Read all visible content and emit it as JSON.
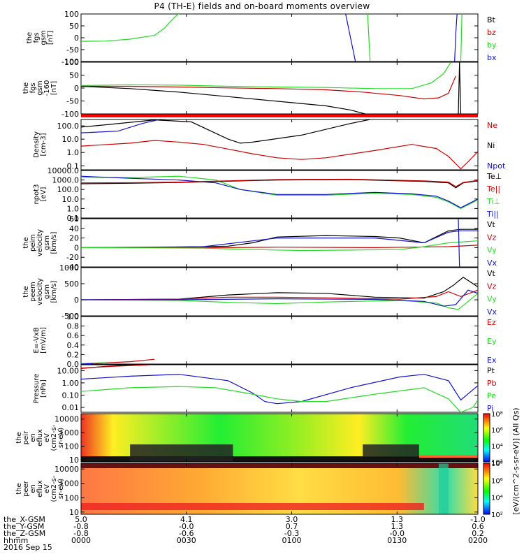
{
  "title": "P4 (TH-E) fields and on-board moments overview",
  "colors": {
    "black": "#000000",
    "red": "#cc0000",
    "green": "#22dd22",
    "blue": "#1111cc",
    "ion_bar": "#ff0000"
  },
  "chart_data": [
    {
      "type": "line",
      "ylabel_lines": [
        "the",
        "fgs",
        "gsm",
        "[nT]"
      ],
      "ylim": [
        -100,
        100
      ],
      "yticks": [
        "100",
        "50",
        "0",
        "-50",
        "-100"
      ],
      "legend": [
        "Bt",
        "bz",
        "by",
        "bx"
      ],
      "series": [
        {
          "name": "by",
          "color": "green",
          "x": [
            0,
            10,
            20,
            30,
            34,
            38,
            40,
            42
          ],
          "y": [
            -15,
            -14,
            -6,
            10,
            40,
            85,
            102,
            130
          ]
        },
        {
          "name": "bx",
          "color": "blue",
          "x": [
            108,
            110,
            112
          ],
          "y": [
            100,
            0,
            -100
          ]
        },
        {
          "name": "bx",
          "color": "blue",
          "x": [
            152.5,
            153,
            153.5
          ],
          "y": [
            -100,
            20,
            100
          ]
        },
        {
          "name": "by",
          "color": "green",
          "x": [
            117,
            118
          ],
          "y": [
            100,
            -100
          ]
        },
        {
          "name": "by",
          "color": "green",
          "x": [
            155,
            155.5
          ],
          "y": [
            -100,
            100
          ]
        }
      ]
    },
    {
      "type": "line",
      "ylabel_lines": [
        "the",
        "fgs",
        "gsm",
        "-160",
        "[nT]"
      ],
      "ylim": [
        -125,
        100
      ],
      "yticks": [
        "100",
        "50",
        "0",
        "-50",
        "-100"
      ],
      "legend": [],
      "series": [
        {
          "name": "green",
          "color": "green",
          "x": [
            0,
            20,
            40,
            60,
            80,
            100,
            120,
            135,
            143,
            148,
            151
          ],
          "y": [
            -2,
            2,
            0,
            -5,
            -8,
            -10,
            -15,
            -15,
            10,
            50,
            100
          ]
        },
        {
          "name": "red",
          "color": "red",
          "x": [
            0,
            20,
            40,
            60,
            80,
            100,
            115,
            130,
            140,
            146,
            150,
            153
          ],
          "y": [
            -5,
            -5,
            -8,
            -12,
            -15,
            -20,
            -30,
            -45,
            -60,
            -55,
            -35,
            40
          ]
        },
        {
          "name": "black",
          "color": "black",
          "x": [
            0,
            20,
            40,
            60,
            80,
            100,
            110,
            116
          ],
          "y": [
            -5,
            -15,
            -30,
            -50,
            -70,
            -90,
            -108,
            -125
          ]
        },
        {
          "name": "black",
          "color": "black",
          "x": [
            154,
            154.5,
            155
          ],
          "y": [
            -125,
            100,
            -125
          ]
        }
      ]
    },
    {
      "type": "line",
      "ylabel_lines": [
        "Density",
        "[cm-3]"
      ],
      "ylog": true,
      "ylim": [
        0.05,
        300
      ],
      "yticks": [
        "100.0",
        "10.0",
        "1.0",
        "0.1"
      ],
      "ytick_values": [
        100,
        10,
        1,
        0.1
      ],
      "legend": [
        "Ne",
        "Ni",
        "Npot"
      ],
      "series": [
        {
          "name": "Ni",
          "color": "black",
          "x": [
            0,
            10,
            30,
            45,
            60,
            65,
            70,
            90,
            110,
            118
          ],
          "y": [
            80,
            120,
            280,
            200,
            10,
            5,
            6,
            20,
            150,
            300
          ]
        },
        {
          "name": "Npot",
          "color": "blue",
          "x": [
            0,
            15,
            25,
            32
          ],
          "y": [
            30,
            40,
            150,
            300
          ]
        },
        {
          "name": "Ne",
          "color": "red",
          "x": [
            0,
            20,
            30,
            40,
            50,
            60,
            70,
            80,
            90,
            100,
            120,
            135,
            145,
            150,
            155,
            158,
            162
          ],
          "y": [
            3,
            5,
            8,
            6,
            4,
            1.8,
            0.8,
            0.4,
            0.3,
            0.4,
            1.4,
            4,
            2,
            0.5,
            0.06,
            0.2,
            1.2
          ]
        }
      ]
    },
    {
      "type": "line",
      "ylabel_lines": [
        "npot3",
        "[eV]"
      ],
      "ylog": true,
      "ylim": [
        0.1,
        10000
      ],
      "yticks": [
        "10000.0",
        "1000.0",
        "100.0",
        "10.0",
        "1.0",
        "0.1"
      ],
      "ytick_values": [
        10000,
        1000,
        100,
        10,
        1,
        0.1
      ],
      "legend": [
        "Te⊥",
        "Te||",
        "Ti⊥",
        "Ti||"
      ],
      "series": [
        {
          "name": "Ti||",
          "color": "green",
          "x": [
            0,
            20,
            40,
            55,
            65,
            80,
            100,
            120,
            135,
            145,
            150,
            155,
            162
          ],
          "y": [
            2000,
            1800,
            2500,
            1000,
            100,
            25,
            25,
            40,
            30,
            15,
            5,
            1,
            8
          ]
        },
        {
          "name": "Ti⊥",
          "color": "blue",
          "x": [
            0,
            20,
            40,
            55,
            65,
            80,
            100,
            120,
            135,
            145,
            150,
            155,
            162
          ],
          "y": [
            2500,
            1500,
            1000,
            500,
            100,
            30,
            30,
            50,
            35,
            20,
            6,
            1.2,
            10
          ]
        },
        {
          "name": "Te||",
          "color": "black",
          "x": [
            0,
            20,
            40,
            80,
            110,
            140,
            150,
            153,
            156,
            162
          ],
          "y": [
            400,
            450,
            550,
            1000,
            1100,
            700,
            500,
            150,
            500,
            800
          ]
        },
        {
          "name": "Te⊥",
          "color": "red",
          "x": [
            0,
            20,
            40,
            80,
            110,
            140,
            150,
            153,
            156,
            162
          ],
          "y": [
            500,
            520,
            600,
            1100,
            1200,
            800,
            600,
            200,
            550,
            900
          ]
        }
      ]
    },
    {
      "type": "line",
      "ylabel_lines": [
        "the",
        "peim",
        "velocity",
        "gsm",
        "[km/s]"
      ],
      "ylim": [
        -40,
        60
      ],
      "yticks": [
        "60",
        "40",
        "20",
        "0",
        "-20",
        "-40"
      ],
      "legend": [
        "Vt",
        "Vz",
        "Vy",
        "Vx"
      ],
      "series": [
        {
          "name": "Vt",
          "color": "black",
          "x": [
            0,
            30,
            50,
            60,
            70,
            80,
            100,
            110,
            120,
            130,
            140,
            150,
            155,
            162
          ],
          "y": [
            0,
            0,
            2,
            3,
            10,
            22,
            25,
            24,
            23,
            20,
            10,
            35,
            38,
            38
          ]
        },
        {
          "name": "Vx",
          "color": "blue",
          "x": [
            0,
            50,
            80,
            120,
            140,
            150,
            155,
            162
          ],
          "y": [
            0,
            2,
            20,
            20,
            10,
            32,
            35,
            35
          ]
        },
        {
          "name": "Vz",
          "color": "red",
          "x": [
            0,
            60,
            80,
            120,
            150,
            162
          ],
          "y": [
            0,
            0,
            1,
            0,
            2,
            5
          ]
        },
        {
          "name": "Vy",
          "color": "green",
          "x": [
            0,
            50,
            70,
            90,
            110,
            130,
            140,
            150,
            162
          ],
          "y": [
            0,
            -1,
            -4,
            -6,
            -5,
            -4,
            2,
            10,
            14
          ]
        },
        {
          "name": "Vx",
          "color": "blue",
          "x": [
            154,
            154.5,
            155
          ],
          "y": [
            60,
            -40,
            -40
          ]
        }
      ]
    },
    {
      "type": "line",
      "ylabel_lines": [
        "the",
        "peem",
        "velocity",
        "gsm",
        "[km/s]"
      ],
      "ylim": [
        -500,
        1000
      ],
      "yticks": [
        "1000",
        "500",
        "0",
        "-500"
      ],
      "legend": [
        "Vt",
        "Vz",
        "Vy",
        "Vx"
      ],
      "series": [
        {
          "name": "Vt",
          "color": "black",
          "x": [
            0,
            40,
            60,
            80,
            100,
            120,
            140,
            148,
            152,
            156,
            162
          ],
          "y": [
            0,
            20,
            150,
            220,
            200,
            80,
            50,
            250,
            450,
            700,
            400
          ]
        },
        {
          "name": "Vz",
          "color": "red",
          "x": [
            0,
            40,
            60,
            80,
            100,
            130,
            145,
            150,
            155,
            162
          ],
          "y": [
            0,
            20,
            80,
            80,
            60,
            20,
            100,
            250,
            100,
            300
          ]
        },
        {
          "name": "Vy",
          "color": "green",
          "x": [
            0,
            40,
            60,
            80,
            100,
            130,
            145,
            150,
            154,
            162
          ],
          "y": [
            0,
            -20,
            -80,
            -120,
            -70,
            -20,
            -100,
            -250,
            -300,
            200
          ]
        },
        {
          "name": "Vx",
          "color": "blue",
          "x": [
            0,
            40,
            80,
            120,
            140,
            148,
            153,
            158,
            162
          ],
          "y": [
            0,
            0,
            30,
            10,
            -50,
            -200,
            -150,
            300,
            200
          ]
        }
      ]
    },
    {
      "type": "line",
      "ylabel_lines": [
        "E=-VxB",
        "[mV/m]"
      ],
      "ylim": [
        0,
        1
      ],
      "yticks": [
        "1.0",
        "0.8",
        "0.6",
        "0.4",
        "0.2",
        "0.0"
      ],
      "legend": [
        "Ez",
        "Ey",
        "Ex"
      ],
      "series": [
        {
          "name": "Ez",
          "color": "red",
          "x": [
            0,
            20,
            30
          ],
          "y": [
            0,
            0.05,
            0.1
          ]
        },
        {
          "name": "Ey",
          "color": "green",
          "x": [
            0,
            10
          ],
          "y": [
            0.01,
            0.03
          ]
        },
        {
          "name": "Ex",
          "color": "blue",
          "x": [
            0,
            5
          ],
          "y": [
            0,
            0.01
          ]
        }
      ]
    },
    {
      "type": "line",
      "ylabel_lines": [
        "Pressure",
        "[nPa]"
      ],
      "ylog": true,
      "ylim": [
        0.004,
        30
      ],
      "yticks": [
        "10.00",
        "1.00",
        "0.10",
        "0.01"
      ],
      "ytick_values": [
        10,
        1,
        0.1,
        0.01
      ],
      "legend": [
        "Pt",
        "Pb",
        "Pe",
        "Pi"
      ],
      "series": [
        {
          "name": "Pi",
          "color": "blue",
          "x": [
            0,
            20,
            40,
            60,
            70,
            75,
            80,
            90,
            110,
            130,
            140,
            150,
            155,
            162
          ],
          "y": [
            2,
            3.5,
            5,
            1.5,
            0.15,
            0.03,
            0.02,
            0.03,
            0.4,
            3,
            5,
            1.5,
            0.04,
            0.6
          ]
        },
        {
          "name": "Pe",
          "color": "green",
          "x": [
            0,
            20,
            40,
            55,
            70,
            80,
            90,
            100,
            120,
            140,
            150,
            155,
            160,
            162
          ],
          "y": [
            0.2,
            0.4,
            0.5,
            0.4,
            0.12,
            0.05,
            0.03,
            0.03,
            0.12,
            0.4,
            0.05,
            0.004,
            0.01,
            0.04
          ]
        },
        {
          "name": "Pt",
          "color": "black",
          "x": [
            0,
            10,
            20
          ],
          "y": [
            15,
            22,
            30
          ]
        },
        {
          "name": "Pb",
          "color": "red",
          "x": [
            0,
            12,
            28
          ],
          "y": [
            16,
            22,
            30
          ]
        }
      ]
    },
    {
      "type": "heatmap",
      "ylabel_lines": [
        "the",
        "peir",
        "en",
        "eflux",
        "eV",
        "(cm2-s-",
        "sr-eV)"
      ],
      "ylog": true,
      "ylim": [
        7,
        25000
      ],
      "yticks": [
        "10000",
        "1000",
        "100",
        "10"
      ],
      "ytick_values": [
        10000,
        1000,
        100,
        10
      ],
      "colorbar": "peir",
      "zlim": [
        100,
        100000000
      ]
    },
    {
      "type": "heatmap",
      "ylabel_lines": [
        "the",
        "peer",
        "en",
        "eflux",
        "eV",
        "(cm2-s-",
        "sr-eV)"
      ],
      "ylog": true,
      "ylim": [
        7,
        25000
      ],
      "yticks": [
        "10000",
        "1000",
        "100",
        "10"
      ],
      "ytick_values": [
        10000,
        1000,
        100,
        10
      ],
      "colorbar": "peer",
      "zlim": [
        100,
        100000000
      ]
    }
  ],
  "colorbar": {
    "label": "[eV/(cm^2-s-sr-eV)] (All Qs)",
    "ticks_peir": [
      "10⁸",
      "10⁶",
      "10⁴",
      "10²"
    ],
    "ticks_peer": [
      "10⁸",
      "10⁶",
      "10⁴",
      "10²"
    ],
    "tick_values": [
      100000000,
      1000000,
      10000,
      100
    ]
  },
  "xaxis": {
    "xlim": [
      0,
      162
    ],
    "tick_x": [
      0,
      43,
      86,
      129,
      162
    ],
    "rows": [
      {
        "label": "the_X-GSM",
        "values": [
          "5.0",
          "4.1",
          "3.0",
          "1.3",
          "-1.0"
        ]
      },
      {
        "label": "the_Y-GSM",
        "values": [
          "-0.8",
          "-0.0",
          "0.7",
          "1.3",
          "0.6"
        ]
      },
      {
        "label": "the_Z-GSM",
        "values": [
          "-0.8",
          "-0.6",
          "-0.3",
          "-0.0",
          "0.2"
        ]
      },
      {
        "label": "hhmm",
        "values": [
          "0000",
          "0030",
          "0100",
          "0130",
          "0200"
        ]
      }
    ],
    "date": "2016 Sep 15"
  }
}
